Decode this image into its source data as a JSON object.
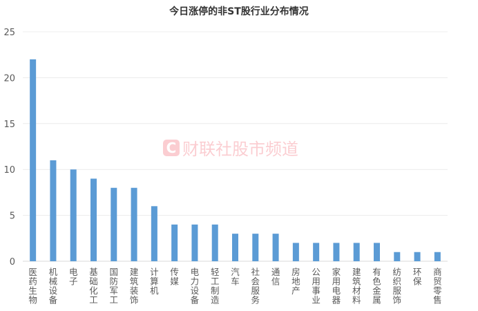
{
  "watermark": {
    "logo": "C",
    "text": "财联社股市频道"
  },
  "chart_data": {
    "type": "bar",
    "title": "今日涨停的非ST股行业分布情况",
    "categories": [
      "医药生物",
      "机械设备",
      "电子",
      "基础化工",
      "国防军工",
      "建筑装饰",
      "计算机",
      "传媒",
      "电力设备",
      "轻工制造",
      "汽车",
      "社会服务",
      "通信",
      "房地产",
      "公用事业",
      "家用电器",
      "建筑材料",
      "有色金属",
      "纺织服饰",
      "环保",
      "商贸零售"
    ],
    "values": [
      22,
      11,
      10,
      9,
      8,
      8,
      6,
      4,
      4,
      4,
      3,
      3,
      3,
      2,
      2,
      2,
      2,
      2,
      1,
      1,
      1
    ],
    "ylim": [
      0,
      25
    ],
    "yticks": [
      0,
      5,
      10,
      15,
      20,
      25
    ],
    "grid": true,
    "bar_color": "#5b9bd5",
    "xlabel": "",
    "ylabel": ""
  }
}
